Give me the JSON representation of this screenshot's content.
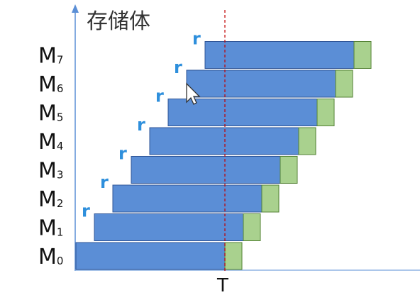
{
  "diagram": {
    "y_axis_title": "存储体",
    "time_marker_label": "T",
    "access_label": "r",
    "memory_modules": [
      {
        "prefix": "M",
        "index": "0"
      },
      {
        "prefix": "M",
        "index": "1"
      },
      {
        "prefix": "M",
        "index": "2"
      },
      {
        "prefix": "M",
        "index": "3"
      },
      {
        "prefix": "M",
        "index": "4"
      },
      {
        "prefix": "M",
        "index": "5"
      },
      {
        "prefix": "M",
        "index": "6"
      },
      {
        "prefix": "M",
        "index": "7"
      }
    ],
    "colors": {
      "axis": "#5b8fd6",
      "access_fill": "#5b8ed6",
      "access_stroke": "#2f5597",
      "recovery_fill": "#a9d18e",
      "recovery_stroke": "#548235",
      "label_r": "#2e8fdc",
      "time_marker": "#c00000"
    }
  }
}
